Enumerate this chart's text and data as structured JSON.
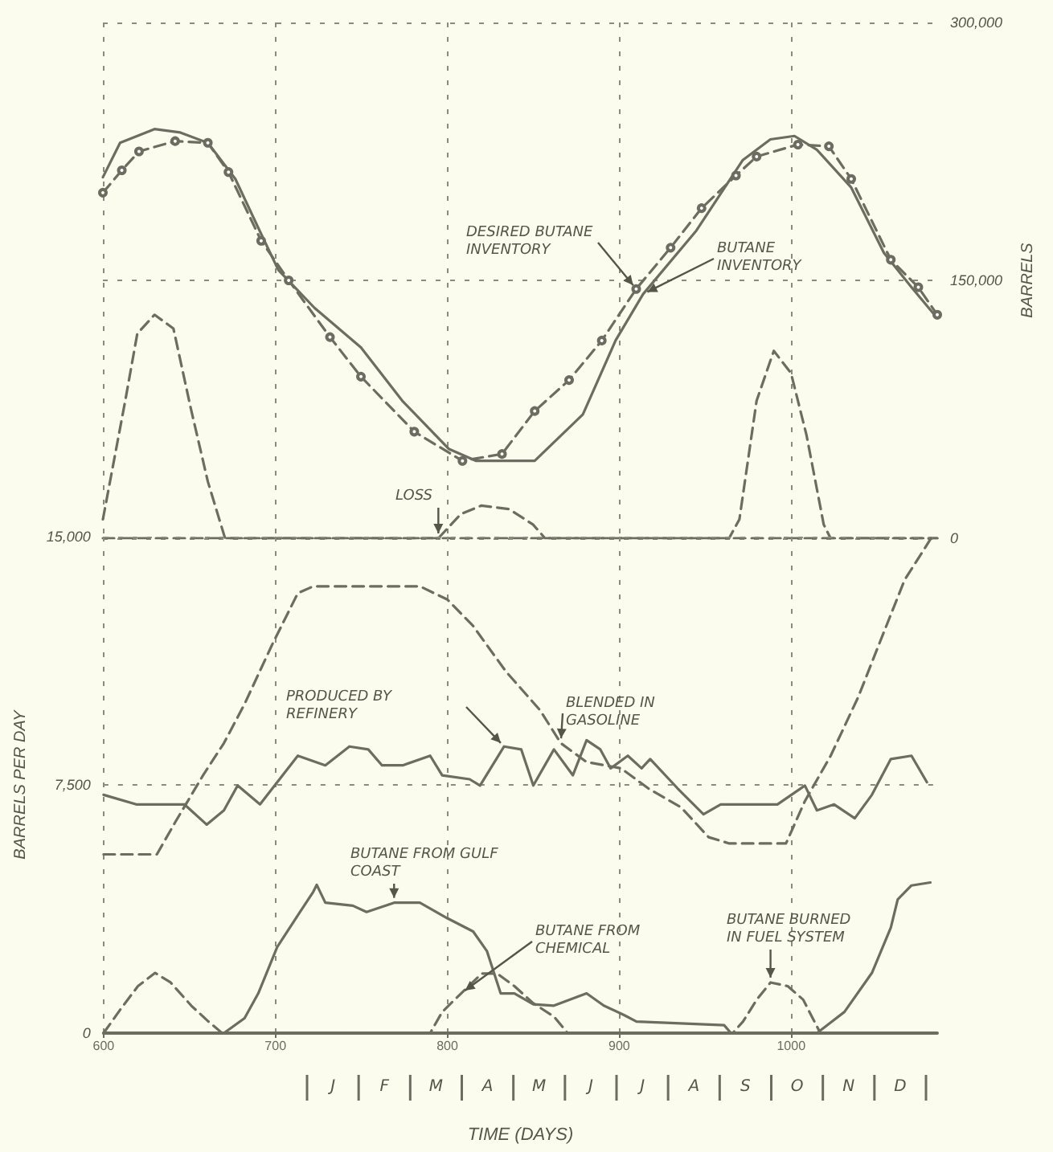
{
  "chart_data": [
    {
      "type": "line",
      "ylabel": "BARRELS",
      "xlim": [
        600,
        1085
      ],
      "xticks": [
        600,
        700,
        800,
        900,
        1000
      ],
      "ylim": [
        0,
        300000
      ],
      "yticks": [
        0,
        {
          "value": 150000,
          "label": "150,000"
        },
        {
          "value": 300000,
          "label": "300,000"
        }
      ],
      "tick_labels": "y",
      "grid": true,
      "legend": false,
      "marker": "none",
      "series": [
        {
          "name": "BUTANE INVENTORY",
          "color": "#6c6d60",
          "line_style": "solid",
          "x": [
            600,
            610,
            630,
            645,
            661,
            677,
            692,
            702,
            723,
            750,
            774,
            801,
            817,
            851,
            879,
            898,
            914,
            945,
            972,
            988,
            1002,
            1015,
            1035,
            1054,
            1070,
            1085
          ],
          "values": [
            210000,
            230000,
            238000,
            236000,
            230000,
            209000,
            177000,
            156000,
            134000,
            111000,
            80000,
            52000,
            45000,
            45000,
            72000,
            115000,
            142000,
            179000,
            220000,
            232000,
            234000,
            226000,
            204000,
            166000,
            146000,
            128000
          ]
        },
        {
          "name": "DESIRED BUTANE INVENTORY",
          "color": "#6c6d60",
          "line_style": "dashed",
          "marker": "circle",
          "x": [
            600,
            611,
            621,
            642,
            661,
            673,
            692,
            708,
            732,
            750,
            781,
            809,
            832,
            851,
            871,
            890,
            910,
            930,
            948,
            968,
            980,
            1004,
            1022,
            1035,
            1058,
            1074,
            1085
          ],
          "values": [
            201000,
            214000,
            225000,
            231000,
            230000,
            213000,
            173000,
            150000,
            117000,
            94000,
            62000,
            45000,
            49000,
            74000,
            92000,
            115000,
            145000,
            169000,
            192000,
            211000,
            222000,
            229000,
            228000,
            209000,
            162000,
            146000,
            130000
          ]
        },
        {
          "name": "LOSS",
          "color": "#6c6d60",
          "line_style": "dashed",
          "x": [
            600,
            795,
            808,
            820,
            836,
            850,
            857,
            1085
          ],
          "values": [
            0,
            0,
            14000,
            19000,
            17000,
            8000,
            0,
            0
          ]
        },
        {
          "color": "#6c6d60",
          "line_style": "dashed",
          "x": [
            600,
            613,
            620,
            630,
            641,
            651,
            661,
            671,
            964,
            970,
            980,
            990,
            1000,
            1009,
            1019,
            1023,
            1085
          ],
          "values": [
            11000,
            80000,
            119000,
            130000,
            122000,
            76000,
            33000,
            0,
            0,
            11000,
            80000,
            109000,
            96000,
            60000,
            8000,
            0,
            0
          ]
        }
      ]
    },
    {
      "type": "line",
      "xlabel": "TIME (DAYS)",
      "ylabel": "BARRELS PER DAY",
      "xlim": [
        600,
        1085
      ],
      "xticks": [
        600,
        700,
        800,
        900,
        1000
      ],
      "ylim": [
        0,
        15000
      ],
      "yticks": [
        0,
        {
          "value": 7500,
          "label": "7,500"
        },
        {
          "value": 15000,
          "label": "15,000"
        }
      ],
      "annotations": [
        "J",
        "F",
        "M",
        "A",
        "M",
        "J",
        "J",
        "A",
        "S",
        "O",
        "N",
        "D"
      ],
      "grid": true,
      "legend": false,
      "marker": "none",
      "series": [
        {
          "name": "BLENDED IN GASOLINE",
          "color": "#6c6d60",
          "line_style": "dashed",
          "x": [
            600,
            631,
            642,
            658,
            670,
            682,
            698,
            713,
            722,
            784,
            800,
            815,
            834,
            854,
            866,
            881,
            901,
            917,
            936,
            952,
            964,
            997,
            1008,
            1023,
            1039,
            1051,
            1066,
            1082
          ],
          "values": [
            5400,
            5400,
            6400,
            7800,
            8760,
            9940,
            11730,
            13290,
            13500,
            13500,
            13100,
            12300,
            10930,
            9750,
            8760,
            8190,
            8000,
            7390,
            6820,
            5920,
            5730,
            5730,
            7010,
            8380,
            10150,
            11730,
            13690,
            15000
          ]
        },
        {
          "name": "PRODUCED BY REFINERY",
          "color": "#6c6d60",
          "line_style": "solid",
          "x": [
            600,
            619,
            647,
            660,
            670,
            678,
            691,
            701,
            713,
            729,
            743,
            754,
            762,
            774,
            790,
            797,
            813,
            819,
            833,
            843,
            850,
            862,
            873,
            881,
            889,
            895,
            905,
            913,
            918,
            934,
            949,
            959,
            992,
            1008,
            1015,
            1025,
            1037,
            1047,
            1058,
            1070,
            1079
          ],
          "values": [
            7200,
            6910,
            6910,
            6300,
            6730,
            7480,
            6910,
            7580,
            8380,
            8090,
            8660,
            8570,
            8090,
            8090,
            8380,
            7790,
            7670,
            7480,
            8660,
            8570,
            7480,
            8570,
            7790,
            8850,
            8570,
            8000,
            8380,
            8000,
            8280,
            7390,
            6610,
            6910,
            6910,
            7480,
            6730,
            6910,
            6490,
            7200,
            8280,
            8380,
            7580
          ]
        },
        {
          "name": "BUTANE FROM GULF COAST",
          "color": "#6c6d60",
          "line_style": "solid",
          "x": [
            600,
            670,
            682,
            690,
            701,
            713,
            722,
            724,
            729,
            745,
            753,
            769,
            784,
            800,
            815,
            823,
            831,
            839,
            850,
            862,
            881,
            891,
            903,
            910,
            961,
            965,
            1015,
            1031,
            1047,
            1058,
            1062,
            1070,
            1081
          ],
          "values": [
            0,
            0,
            450,
            1200,
            2600,
            3560,
            4270,
            4480,
            3940,
            3850,
            3660,
            3940,
            3940,
            3470,
            3070,
            2480,
            1200,
            1200,
            870,
            830,
            1200,
            830,
            540,
            350,
            240,
            0,
            0,
            640,
            1820,
            3190,
            4040,
            4460,
            4550
          ]
        },
        {
          "name": "BUTANE FROM CHEMICAL",
          "color": "#6c6d60",
          "line_style": "dashed",
          "x": [
            600,
            790,
            797,
            808,
            820,
            829,
            839,
            850,
            862,
            870,
            1085
          ],
          "values": [
            0,
            0,
            640,
            1200,
            1800,
            1800,
            1420,
            900,
            500,
            0,
            0
          ]
        },
        {
          "name": "BUTANE BURNED IN FUEL SYSTEM",
          "color": "#6c6d60",
          "line_style": "dashed",
          "x": [
            600,
            610,
            620,
            630,
            639,
            651,
            661,
            669,
            966,
            972,
            980,
            988,
            998,
            1007,
            1017,
            1085
          ],
          "values": [
            0,
            730,
            1420,
            1820,
            1530,
            830,
            350,
            0,
            0,
            350,
            1010,
            1530,
            1420,
            1010,
            0,
            0
          ]
        }
      ]
    }
  ]
}
